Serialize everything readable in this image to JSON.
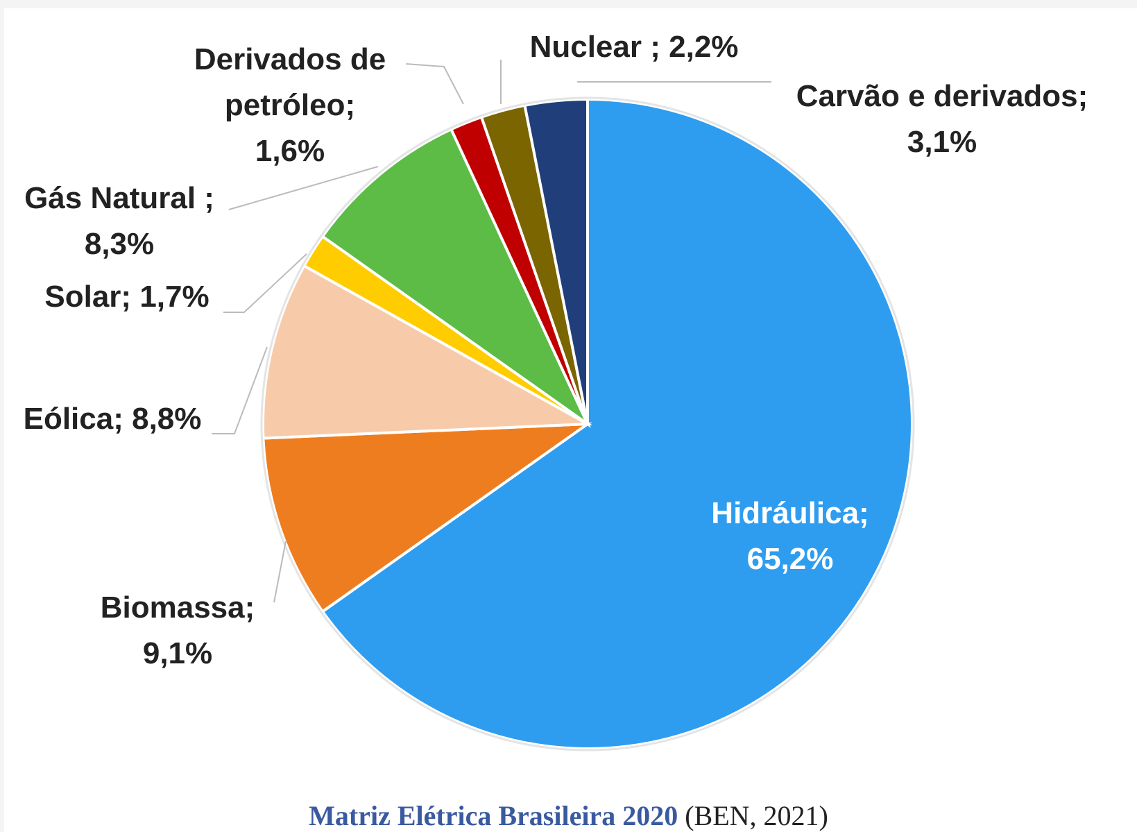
{
  "chart_data": {
    "type": "pie",
    "categories": [
      "Hidráulica;",
      "Biomassa;",
      "Eólica;",
      "Solar;",
      "Gás Natural ;",
      "Derivados de petróleo;",
      "Nuclear ;",
      "Carvão e derivados;"
    ],
    "values": [
      65.2,
      9.1,
      8.8,
      1.7,
      8.3,
      1.6,
      2.2,
      3.1
    ],
    "value_labels": [
      "65,2%",
      "9,1%",
      "8,8%",
      "1,7%",
      "8,3%",
      "1,6%",
      "2,2%",
      "3,1%"
    ],
    "colors": [
      "#2e9df0",
      "#ee7d1f",
      "#f7cbaa",
      "#ffcc00",
      "#5cbc46",
      "#c00000",
      "#7a6500",
      "#203f7a"
    ],
    "caption": "Matriz Elétrica Brasileira 2020",
    "source": "(BEN, 2021)"
  }
}
